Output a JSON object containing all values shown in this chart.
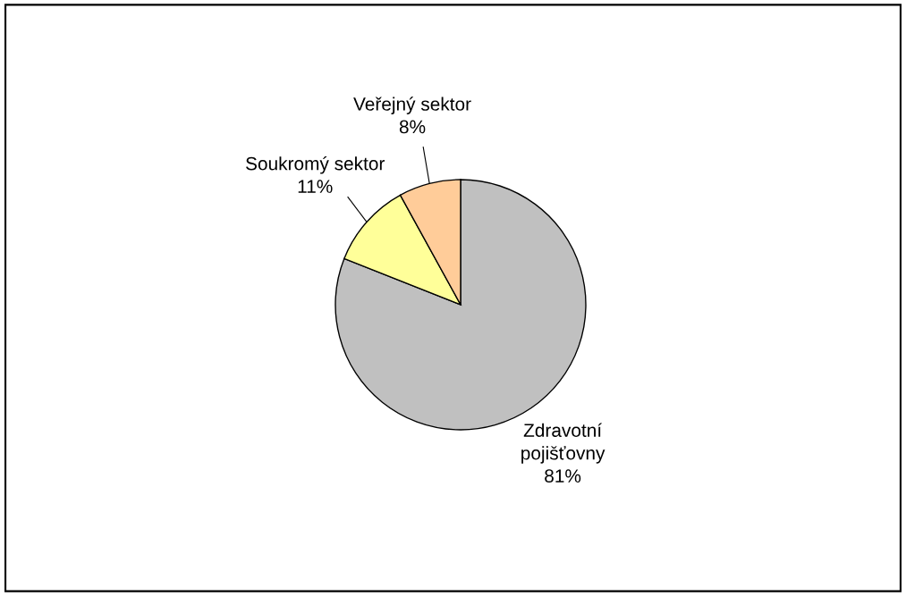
{
  "chart_data": {
    "type": "pie",
    "categories": [
      "Zdravotní pojišťovny",
      "Soukromý sektor",
      "Veřejný sektor"
    ],
    "values": [
      81,
      11,
      8
    ],
    "colors": [
      "#c0c0c0",
      "#ffff99",
      "#ffcc99"
    ],
    "value_labels": [
      "81%",
      "11%",
      "8%"
    ],
    "legend": false
  }
}
